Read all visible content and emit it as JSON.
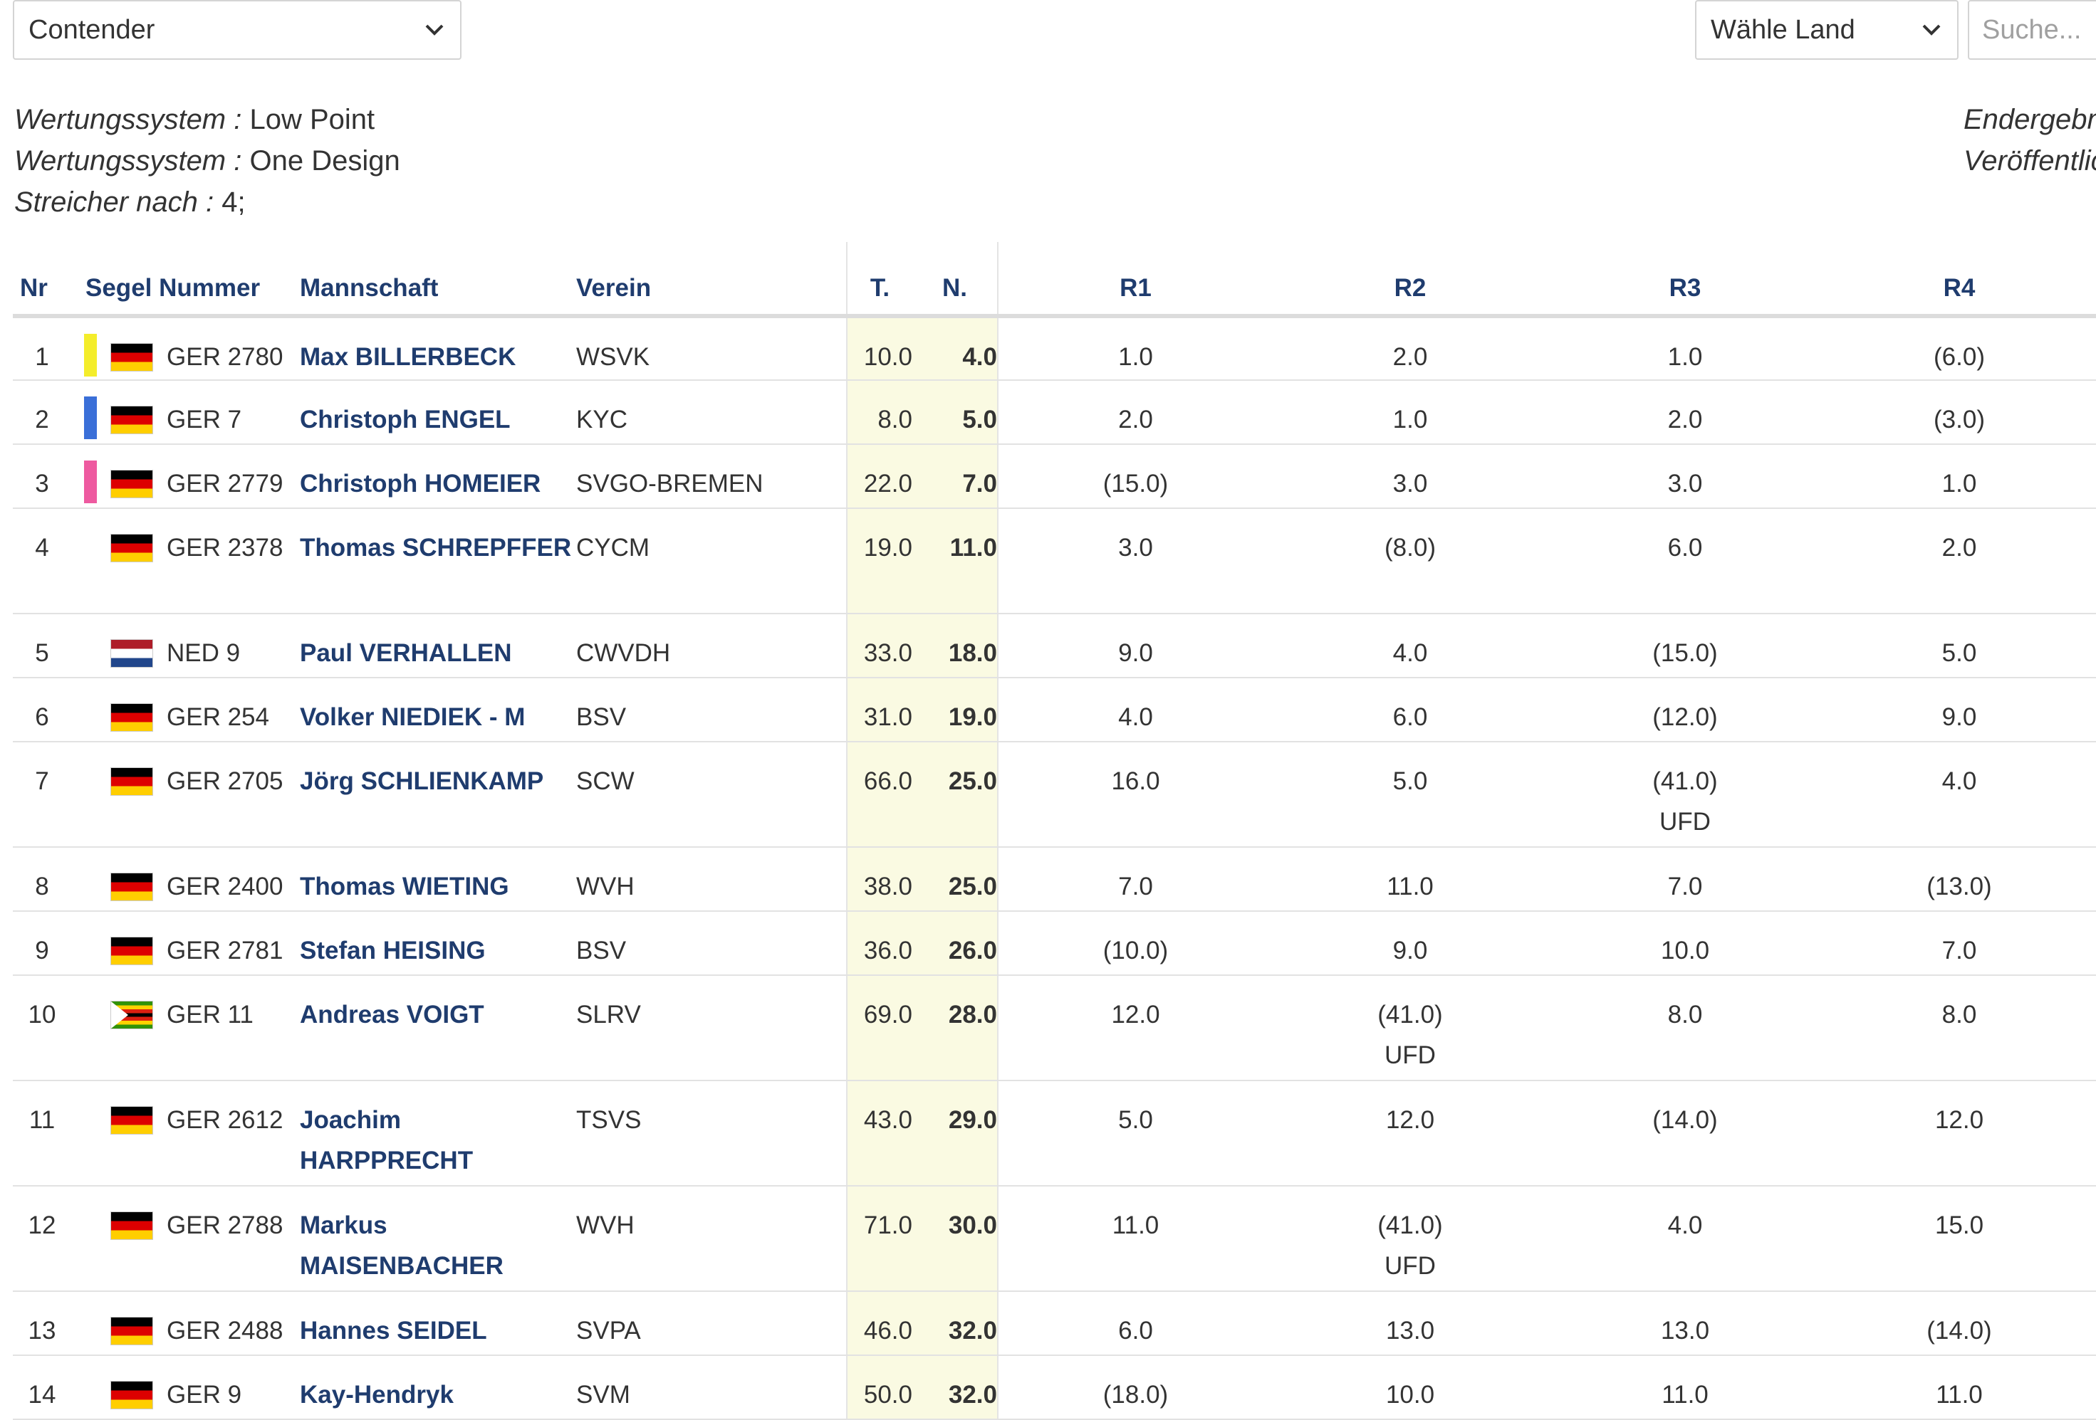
{
  "filters": {
    "class_select": "Contender",
    "country_select": "Wähle Land",
    "search_placeholder": "Suche..."
  },
  "info": {
    "lines": [
      {
        "label": "Wertungssystem :",
        "value": "Low Point"
      },
      {
        "label": "Wertungssystem :",
        "value": "One Design"
      },
      {
        "label": "Streicher nach :",
        "value": "4;"
      }
    ],
    "right_lines": [
      "Endergebnis",
      "Veröffentlicht"
    ]
  },
  "table": {
    "headers": {
      "nr": "Nr",
      "sail": "Segel Nummer",
      "team": "Mannschaft",
      "club": "Verein",
      "total": "T.",
      "net": "N.",
      "r1": "R1",
      "r2": "R2",
      "r3": "R3",
      "r4": "R4"
    },
    "rows": [
      {
        "nr": "1",
        "medal": "#f4ed2b",
        "flag": "de",
        "sail": "GER 2780",
        "team": "Max BILLERBECK",
        "club": "WSVK",
        "total": "10.0",
        "net": "4.0",
        "races": [
          [
            "1.0",
            ""
          ],
          [
            "2.0",
            ""
          ],
          [
            "1.0",
            ""
          ],
          [
            "(6.0)",
            ""
          ]
        ]
      },
      {
        "nr": "2",
        "medal": "#3a6fd8",
        "flag": "de",
        "sail": "GER 7",
        "team": "Christoph ENGEL",
        "club": "KYC",
        "total": "8.0",
        "net": "5.0",
        "races": [
          [
            "2.0",
            ""
          ],
          [
            "1.0",
            ""
          ],
          [
            "2.0",
            ""
          ],
          [
            "(3.0)",
            ""
          ]
        ]
      },
      {
        "nr": "3",
        "medal": "#ee5aa0",
        "flag": "de",
        "sail": "GER 2779",
        "team": "Christoph HOMEIER",
        "club": "SVGO-BREMEN",
        "total": "22.0",
        "net": "7.0",
        "races": [
          [
            "(15.0)",
            ""
          ],
          [
            "3.0",
            ""
          ],
          [
            "3.0",
            ""
          ],
          [
            "1.0",
            ""
          ]
        ]
      },
      {
        "nr": "4",
        "medal": "",
        "flag": "de",
        "sail": "GER 2378",
        "team": "Thomas SCHREPFFER",
        "club": "CYCM",
        "total": "19.0",
        "net": "11.0",
        "races": [
          [
            "3.0",
            ""
          ],
          [
            "(8.0)",
            ""
          ],
          [
            "6.0",
            ""
          ],
          [
            "2.0",
            ""
          ]
        ]
      },
      {
        "nr": "5",
        "medal": "",
        "flag": "nl",
        "sail": "NED 9",
        "team": "Paul VERHALLEN",
        "club": "CWVDH",
        "total": "33.0",
        "net": "18.0",
        "races": [
          [
            "9.0",
            ""
          ],
          [
            "4.0",
            ""
          ],
          [
            "(15.0)",
            ""
          ],
          [
            "5.0",
            ""
          ]
        ]
      },
      {
        "nr": "6",
        "medal": "",
        "flag": "de",
        "sail": "GER 254",
        "team": "Volker NIEDIEK - M",
        "club": "BSV",
        "total": "31.0",
        "net": "19.0",
        "races": [
          [
            "4.0",
            ""
          ],
          [
            "6.0",
            ""
          ],
          [
            "(12.0)",
            ""
          ],
          [
            "9.0",
            ""
          ]
        ]
      },
      {
        "nr": "7",
        "medal": "",
        "flag": "de",
        "sail": "GER 2705",
        "team": "Jörg SCHLIENKAMP",
        "club": "SCW",
        "total": "66.0",
        "net": "25.0",
        "races": [
          [
            "16.0",
            ""
          ],
          [
            "5.0",
            ""
          ],
          [
            "(41.0)",
            "UFD"
          ],
          [
            "4.0",
            ""
          ]
        ]
      },
      {
        "nr": "8",
        "medal": "",
        "flag": "de",
        "sail": "GER 2400",
        "team": "Thomas WIETING",
        "club": "WVH",
        "total": "38.0",
        "net": "25.0",
        "races": [
          [
            "7.0",
            ""
          ],
          [
            "11.0",
            ""
          ],
          [
            "7.0",
            ""
          ],
          [
            "(13.0)",
            ""
          ]
        ]
      },
      {
        "nr": "9",
        "medal": "",
        "flag": "de",
        "sail": "GER 2781",
        "team": "Stefan HEISING",
        "club": "BSV",
        "total": "36.0",
        "net": "26.0",
        "races": [
          [
            "(10.0)",
            ""
          ],
          [
            "9.0",
            ""
          ],
          [
            "10.0",
            ""
          ],
          [
            "7.0",
            ""
          ]
        ]
      },
      {
        "nr": "10",
        "medal": "",
        "flag": "zw",
        "sail": "GER 11",
        "team": "Andreas VOIGT",
        "club": "SLRV",
        "total": "69.0",
        "net": "28.0",
        "races": [
          [
            "12.0",
            ""
          ],
          [
            "(41.0)",
            "UFD"
          ],
          [
            "8.0",
            ""
          ],
          [
            "8.0",
            ""
          ]
        ]
      },
      {
        "nr": "11",
        "medal": "",
        "flag": "de",
        "sail": "GER 2612",
        "team": "Joachim HARPPRECHT",
        "club": "TSVS",
        "total": "43.0",
        "net": "29.0",
        "races": [
          [
            "5.0",
            ""
          ],
          [
            "12.0",
            ""
          ],
          [
            "(14.0)",
            ""
          ],
          [
            "12.0",
            ""
          ]
        ]
      },
      {
        "nr": "12",
        "medal": "",
        "flag": "de",
        "sail": "GER 2788",
        "team": "Markus MAISENBACHER",
        "club": "WVH",
        "total": "71.0",
        "net": "30.0",
        "races": [
          [
            "11.0",
            ""
          ],
          [
            "(41.0)",
            "UFD"
          ],
          [
            "4.0",
            ""
          ],
          [
            "15.0",
            ""
          ]
        ]
      },
      {
        "nr": "13",
        "medal": "",
        "flag": "de",
        "sail": "GER 2488",
        "team": "Hannes SEIDEL",
        "club": "SVPA",
        "total": "46.0",
        "net": "32.0",
        "races": [
          [
            "6.0",
            ""
          ],
          [
            "13.0",
            ""
          ],
          [
            "13.0",
            ""
          ],
          [
            "(14.0)",
            ""
          ]
        ]
      },
      {
        "nr": "14",
        "medal": "",
        "flag": "de",
        "sail": "GER 9",
        "team": "Kay-Hendryk",
        "club": "SVM",
        "total": "50.0",
        "net": "32.0",
        "races": [
          [
            "(18.0)",
            ""
          ],
          [
            "10.0",
            ""
          ],
          [
            "11.0",
            ""
          ],
          [
            "11.0",
            ""
          ]
        ]
      }
    ]
  }
}
